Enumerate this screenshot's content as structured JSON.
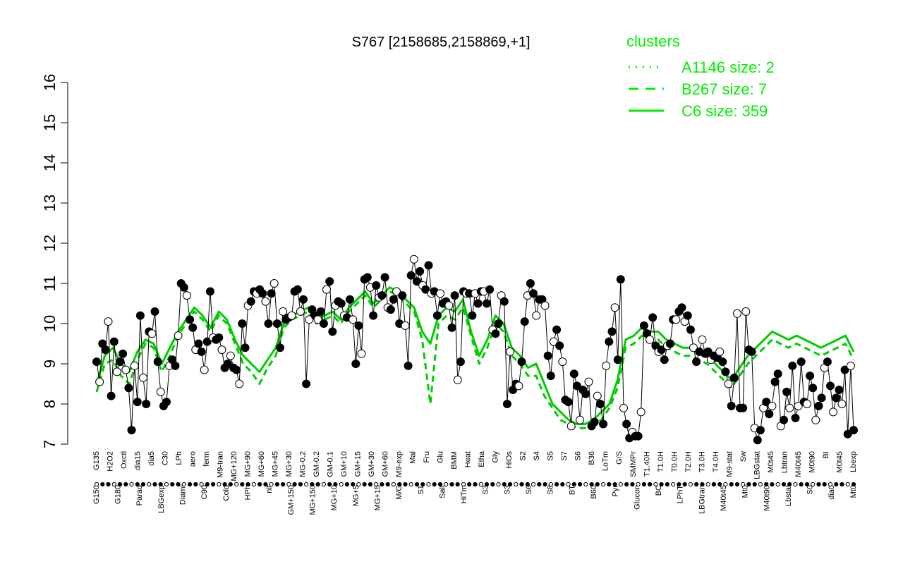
{
  "chart_data": {
    "type": "line",
    "title": "S767 [2158685,2158869,+1]",
    "xlabel": "",
    "ylabel": "",
    "ylim": [
      7,
      16
    ],
    "yticks": [
      7,
      8,
      9,
      10,
      11,
      12,
      13,
      14,
      15,
      16
    ],
    "grid": false,
    "legend": {
      "title": "clusters",
      "placement": "top-right",
      "entries": [
        {
          "label": "A1146 size: 2",
          "style": "dotted"
        },
        {
          "label": "B267 size: 7",
          "style": "dashed"
        },
        {
          "label": "C6 size: 359",
          "style": "solid"
        }
      ]
    },
    "colors": {
      "legend": "#00ee00",
      "series": "#00cc00",
      "points": "#000000"
    },
    "x_tick_labels_row1": [
      "G135",
      "H2O2",
      "Oxctl",
      "dia15",
      "dia5",
      "C30",
      "LPh",
      "aero",
      "ferm",
      "M9-tran",
      "MG+120",
      "MG+90",
      "MG+60",
      "MG+45",
      "MG+30",
      "MG-0.2",
      "GM-0.2",
      "GM-0.1",
      "GM+10",
      "GM+15",
      "GM+30",
      "GM+60",
      "M9-exp",
      "Mal",
      "Fru",
      "Glu",
      "BMM",
      "Heat",
      "Etha",
      "Gly",
      "HiOs",
      "S2",
      "S4",
      "S5",
      "S7",
      "S6",
      "B36",
      "LoTm",
      "G/S",
      "SMMPr",
      "T1.40H",
      "T1.0H",
      "T0.0H",
      "T2.0H",
      "T3.0H",
      "T4.0H",
      "M9-stat",
      "Sw",
      "LBGstat",
      "M0t45",
      "Lbtran",
      "M40t45",
      "M0t90",
      "BI",
      "M0t45",
      "Lbexp"
    ],
    "x_tick_labels_row2": [
      "G150",
      "G180",
      "Paraq",
      "LBGexp",
      "Diami",
      "C90",
      "Cold",
      "HPh",
      "nit",
      "GM+150",
      "MG+150",
      "MG+10",
      "MG+5",
      "MG+15",
      "M/G",
      "S1",
      "Salt",
      "HiTm",
      "S3",
      "S3",
      "S6",
      "S8",
      "BT",
      "B60",
      "Pyr",
      "Glucon",
      "BC",
      "LPhT",
      "LBGtran",
      "M40t45",
      "Mt0",
      "M40t90",
      "Lbstat",
      "S0",
      "dia0",
      "Mt0"
    ],
    "series": [
      {
        "name": "C6",
        "style": "solid",
        "y": [
          8.5,
          9.2,
          9.4,
          9.0,
          8.8,
          9.3,
          9.6,
          9.5,
          9.0,
          9.4,
          9.8,
          10.1,
          10.4,
          10.2,
          9.9,
          10.3,
          10.1,
          9.6,
          9.2,
          9.0,
          8.8,
          9.1,
          9.4,
          10.0,
          10.2,
          10.3,
          10.4,
          10.1,
          10.2,
          10.3,
          10.1,
          10.4,
          10.6,
          10.8,
          10.5,
          10.7,
          10.9,
          10.8,
          10.6,
          10.4,
          9.8,
          9.5,
          10.2,
          10.4,
          10.3,
          10.6,
          9.8,
          9.2,
          9.6,
          10.2,
          10.0,
          9.4,
          9.2,
          8.9,
          9.0,
          8.5,
          8.0,
          7.8,
          7.6,
          7.5,
          7.5,
          7.6,
          7.8,
          8.0,
          8.6,
          9.6,
          9.7,
          9.9,
          9.8,
          9.8,
          9.6,
          9.5,
          9.4,
          9.4,
          9.3,
          9.2,
          9.0,
          8.8,
          8.6,
          8.9,
          9.2,
          9.4,
          9.6,
          9.8,
          9.7,
          9.6,
          9.7,
          9.6,
          9.5,
          9.4,
          9.5,
          9.6,
          9.7,
          9.3
        ]
      },
      {
        "name": "B267",
        "style": "dashed",
        "y": [
          8.3,
          9.0,
          9.1,
          8.7,
          8.5,
          9.1,
          9.5,
          9.4,
          8.8,
          9.2,
          9.7,
          10.0,
          10.3,
          10.1,
          9.8,
          10.2,
          10.0,
          9.5,
          9.0,
          8.8,
          8.5,
          8.9,
          9.2,
          9.9,
          10.1,
          10.2,
          10.3,
          10.0,
          10.1,
          10.2,
          10.0,
          10.3,
          10.5,
          10.7,
          10.4,
          10.6,
          10.8,
          10.7,
          10.5,
          10.3,
          9.6,
          8.0,
          10.0,
          10.2,
          10.1,
          10.4,
          9.7,
          9.0,
          9.4,
          10.0,
          9.8,
          9.2,
          9.0,
          8.7,
          8.7,
          8.2,
          7.9,
          7.6,
          7.5,
          7.4,
          7.4,
          7.5,
          7.6,
          7.9,
          8.4,
          9.4,
          9.5,
          9.7,
          9.6,
          9.6,
          9.4,
          9.3,
          9.2,
          9.2,
          9.1,
          9.0,
          8.8,
          8.6,
          8.4,
          8.7,
          9.0,
          9.2,
          9.4,
          9.6,
          9.5,
          9.4,
          9.5,
          9.4,
          9.3,
          9.2,
          9.3,
          9.4,
          9.5,
          9.1
        ]
      }
    ],
    "points_y": [
      9.05,
      8.55,
      9.5,
      9.35,
      10.05,
      8.2,
      9.55,
      8.8,
      9.05,
      9.25,
      8.85,
      8.4,
      7.35,
      8.95,
      8.05,
      10.2,
      8.65,
      8.0,
      9.8,
      9.75,
      10.3,
      9.05,
      8.3,
      7.95,
      8.05,
      8.95,
      9.1,
      8.95,
      9.7,
      11.0,
      10.9,
      10.7,
      10.1,
      9.9,
      9.35,
      9.5,
      9.3,
      8.85,
      9.55,
      10.8,
      9.65,
      9.6,
      9.65,
      9.35,
      8.9,
      9.0,
      9.2,
      8.9,
      8.85,
      8.5,
      10.0,
      9.4,
      10.45,
      10.55,
      10.8,
      10.75,
      10.85,
      10.75,
      10.55,
      10.0,
      10.75,
      11.0,
      10.0,
      9.4,
      10.3,
      10.1,
      10.15,
      10.2,
      10.8,
      10.85,
      10.3,
      10.6,
      8.5,
      10.1,
      10.35,
      10.2,
      10.1,
      10.3,
      10.0,
      10.85,
      11.05,
      9.8,
      10.45,
      10.55,
      10.5,
      10.2,
      10.15,
      10.6,
      10.1,
      9.0,
      9.95,
      9.25,
      11.1,
      11.15,
      10.9,
      10.2,
      10.95,
      10.65,
      10.7,
      11.15,
      10.4,
      10.35,
      10.6,
      10.8,
      10.0,
      10.7,
      9.95,
      8.95,
      11.2,
      11.6,
      11.05,
      11.3,
      10.95,
      10.85,
      11.45,
      10.75,
      10.8,
      10.2,
      10.75,
      10.5,
      10.55,
      10.45,
      9.9,
      10.7,
      8.6,
      9.05,
      10.8,
      10.75,
      10.75,
      10.2,
      10.75,
      10.5,
      10.8,
      10.8,
      10.5,
      10.85,
      9.85,
      9.75,
      10.0,
      10.7,
      10.55,
      8.0,
      9.3,
      8.35,
      8.5,
      8.45,
      9.05,
      10.05,
      10.7,
      11.0,
      10.75,
      10.2,
      10.6,
      10.6,
      10.45,
      9.2,
      8.7,
      9.55,
      9.85,
      9.45,
      9.05,
      8.1,
      8.05,
      7.45,
      8.75,
      8.45,
      7.6,
      8.35,
      8.25,
      8.55,
      7.45,
      7.55,
      8.2,
      8.0,
      7.5,
      8.95,
      9.55,
      9.8,
      10.4,
      9.1,
      11.1,
      7.9,
      7.5,
      7.15,
      7.3,
      7.2,
      7.2,
      7.8,
      9.95,
      9.75,
      9.6,
      10.15,
      9.45,
      9.3,
      9.35,
      9.1,
      9.45,
      9.5,
      10.1,
      10.1,
      10.3,
      10.4,
      10.05,
      10.2,
      9.85,
      9.4,
      9.05,
      9.3,
      9.6,
      9.25,
      9.3,
      9.1,
      9.2,
      9.15,
      9.3,
      9.05,
      8.8,
      8.5,
      7.95,
      8.65,
      10.25,
      7.9,
      7.9,
      10.3,
      9.35,
      9.3,
      7.4,
      7.1,
      7.35,
      7.9,
      8.05,
      7.75,
      7.95,
      8.55,
      8.75,
      7.45,
      7.6,
      8.3,
      7.9,
      8.95,
      7.65,
      7.95,
      9.05,
      8.05,
      8.0,
      8.7,
      8.4,
      7.6,
      7.95,
      8.15,
      8.9,
      9.05,
      8.45,
      7.8,
      8.15,
      8.35,
      8.0,
      8.85,
      7.25,
      8.95,
      7.35
    ]
  }
}
